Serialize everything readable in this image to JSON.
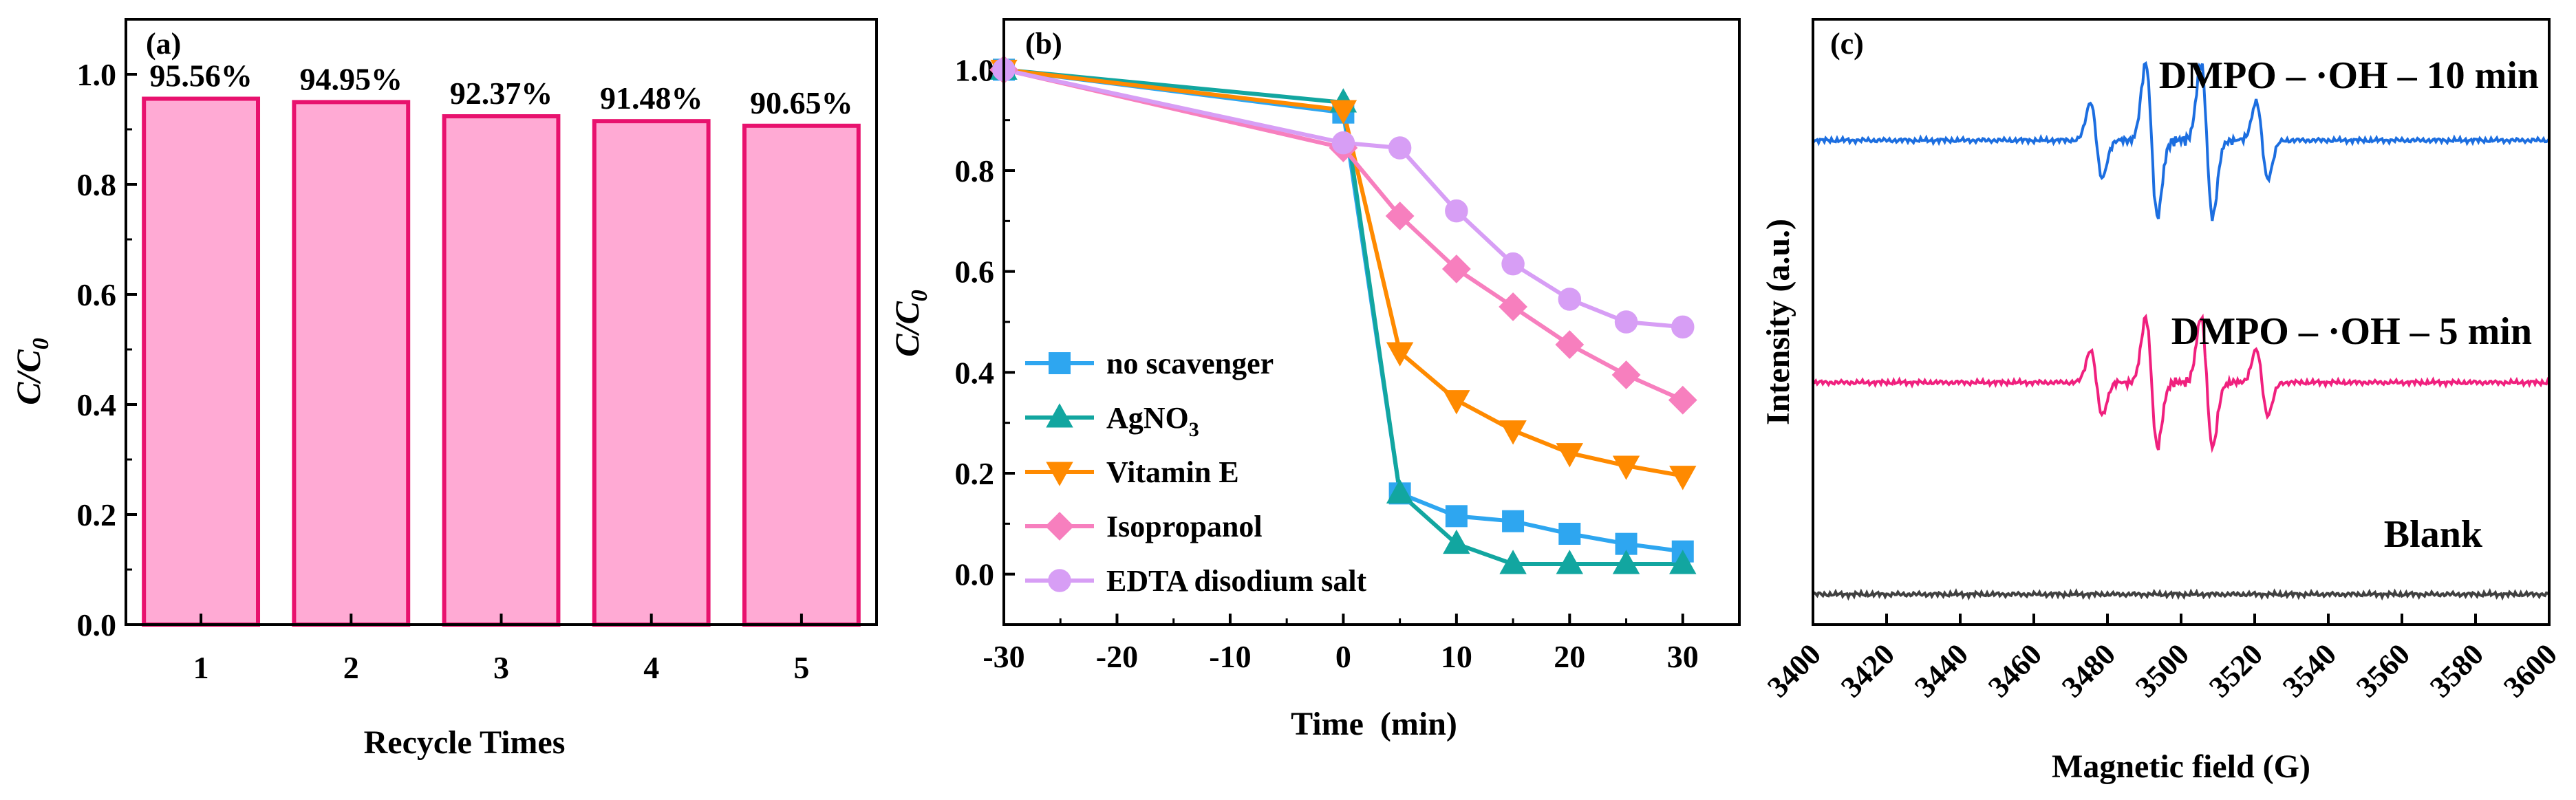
{
  "chart_data": [
    {
      "type": "bar",
      "panel_label": "(a)",
      "title": "",
      "xlabel": "Recycle Times",
      "ylabel": {
        "base": "C/C",
        "sub": "0"
      },
      "categories": [
        "1",
        "2",
        "3",
        "4",
        "5"
      ],
      "values": [
        0.9556,
        0.9495,
        0.9237,
        0.9148,
        0.9065
      ],
      "data_labels": [
        "95.56%",
        "94.95%",
        "92.37%",
        "91.48%",
        "90.65%"
      ],
      "ylim": [
        0,
        1.1
      ],
      "yticks": [
        "0.0",
        "0.2",
        "0.4",
        "0.6",
        "0.8",
        "1.0"
      ],
      "colors": {
        "fill": "#ffaad4",
        "edge": "#e8126e"
      }
    },
    {
      "type": "line",
      "panel_label": "(b)",
      "xlabel": "Time (min)",
      "ylabel": {
        "base": "C/C",
        "sub": "0"
      },
      "xlim": [
        -30,
        35
      ],
      "ylim": [
        -0.1,
        1.1
      ],
      "xticks": [
        "-30",
        "-20",
        "-10",
        "0",
        "10",
        "20",
        "30"
      ],
      "yticks": [
        "0.0",
        "0.2",
        "0.4",
        "0.6",
        "0.8",
        "1.0"
      ],
      "x": [
        -30,
        0,
        5,
        10,
        15,
        20,
        25,
        30
      ],
      "legend_position": "bottom-left",
      "series": [
        {
          "name": "no scavenger",
          "name_parts": {
            "base": "no scavenger",
            "sub": ""
          },
          "color": "#2ea6f0",
          "marker": "square",
          "values": [
            1.0,
            0.915,
            0.16,
            0.115,
            0.105,
            0.08,
            0.06,
            0.045
          ]
        },
        {
          "name": "AgNO3",
          "name_parts": {
            "base": "AgNO",
            "sub": "3"
          },
          "color": "#12a6a0",
          "marker": "triangle-up",
          "values": [
            1.0,
            0.935,
            0.16,
            0.06,
            0.02,
            0.02,
            0.02,
            0.02
          ]
        },
        {
          "name": "Vitamin E",
          "name_parts": {
            "base": "Vitamin E",
            "sub": ""
          },
          "color": "#ff8a00",
          "marker": "triangle-down",
          "values": [
            1.0,
            0.92,
            0.44,
            0.345,
            0.285,
            0.24,
            0.215,
            0.195
          ]
        },
        {
          "name": "Isopropanol",
          "name_parts": {
            "base": "Isopropanol",
            "sub": ""
          },
          "color": "#f77fbe",
          "marker": "diamond",
          "values": [
            1.0,
            0.845,
            0.71,
            0.605,
            0.53,
            0.455,
            0.395,
            0.345
          ]
        },
        {
          "name": "EDTA disodium salt",
          "name_parts": {
            "base": "EDTA disodium salt",
            "sub": ""
          },
          "color": "#d79ef5",
          "marker": "circle",
          "values": [
            1.0,
            0.855,
            0.845,
            0.72,
            0.615,
            0.545,
            0.5,
            0.49
          ]
        }
      ]
    },
    {
      "type": "line",
      "panel_label": "(c)",
      "xlabel": "Magnetic field (G)",
      "ylabel": "Intensity (a.u.)",
      "xlim": [
        3400,
        3600
      ],
      "xticks": [
        "3400",
        "3420",
        "3440",
        "3460",
        "3480",
        "3500",
        "3520",
        "3540",
        "3560",
        "3580",
        "3600"
      ],
      "yticks": [],
      "note": "EPR spectra, stacked with vertical offsets, no y tick labels",
      "line_positions": [
        3477,
        3492,
        3507,
        3522
      ],
      "series": [
        {
          "name": "DMPO – ·OH – 10 min",
          "color": "#1c6ee0",
          "offset": 0.8,
          "amplitude": 1.0
        },
        {
          "name": "DMPO – ·OH – 5 min",
          "color": "#f0207e",
          "offset": 0.4,
          "amplitude": 0.85
        },
        {
          "name": "Blank",
          "color": "#404040",
          "offset": 0.05,
          "amplitude": 0.0
        }
      ]
    }
  ]
}
